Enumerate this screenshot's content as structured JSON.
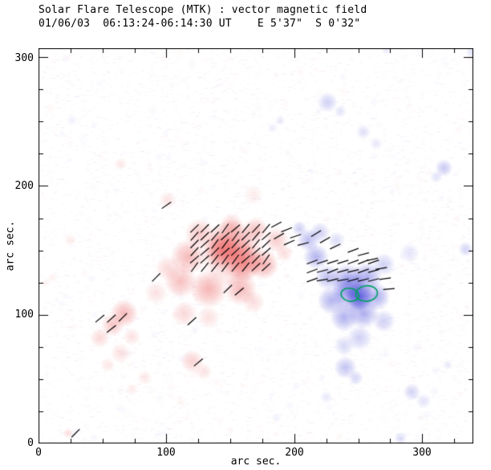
{
  "title": "Solar Flare Telescope (MTK) : vector magnetic field",
  "subtitle": "01/06/03  06:13:24-06:14:30 UT    E 5'37\"  S 0'32\"",
  "chart_data": {
    "type": "heatmap",
    "title": "Solar Flare Telescope (MTK) : vector magnetic field",
    "subtitle": "01/06/03  06:13:24-06:14:30 UT    E 5'37\"  S 0'32\"",
    "xlabel": "arc sec.",
    "ylabel": "arc sec.",
    "xlim": [
      0,
      340
    ],
    "ylim": [
      0,
      307
    ],
    "xticks": [
      0,
      100,
      200,
      300
    ],
    "yticks": [
      0,
      100,
      200,
      300
    ],
    "grid": false,
    "legend": false,
    "colors": {
      "positive": "#e83c3c",
      "negative": "#3a3ad6",
      "contour": "#00a060",
      "vector": "#000000",
      "positive_rgb": [
        232,
        60,
        60
      ],
      "negative_rgb": [
        58,
        58,
        214
      ]
    },
    "polarity_note": "positive=red, negative=blue, arcsec coordinates [x,y,radius,intensity,polarity]",
    "blobs": [
      [
        152,
        148,
        26,
        0.38,
        1
      ],
      [
        160,
        141,
        15,
        0.5,
        1
      ],
      [
        143,
        150,
        14,
        0.46,
        1
      ],
      [
        150,
        156,
        18,
        0.32,
        1
      ],
      [
        126,
        163,
        12,
        0.28,
        1
      ],
      [
        117,
        145,
        14,
        0.36,
        1
      ],
      [
        111,
        126,
        13,
        0.33,
        1
      ],
      [
        133,
        120,
        15,
        0.38,
        1
      ],
      [
        158,
        120,
        13,
        0.36,
        1
      ],
      [
        176,
        139,
        12,
        0.4,
        1
      ],
      [
        186,
        158,
        10,
        0.26,
        1
      ],
      [
        170,
        166,
        10,
        0.3,
        1
      ],
      [
        151,
        170,
        9,
        0.24,
        1
      ],
      [
        101,
        136,
        10,
        0.2,
        1
      ],
      [
        92,
        117,
        9,
        0.16,
        1
      ],
      [
        114,
        101,
        10,
        0.2,
        1
      ],
      [
        133,
        98,
        9,
        0.16,
        1
      ],
      [
        168,
        110,
        9,
        0.18,
        1
      ],
      [
        192,
        148,
        7,
        0.18,
        1
      ],
      [
        67,
        101,
        11,
        0.36,
        1
      ],
      [
        58,
        92,
        9,
        0.3,
        1
      ],
      [
        48,
        82,
        8,
        0.2,
        1
      ],
      [
        73,
        83,
        7,
        0.16,
        1
      ],
      [
        64,
        70,
        8,
        0.16,
        1
      ],
      [
        54,
        61,
        6,
        0.12,
        1
      ],
      [
        120,
        64,
        9,
        0.24,
        1
      ],
      [
        129,
        56,
        7,
        0.15,
        1
      ],
      [
        83,
        51,
        6,
        0.12,
        1
      ],
      [
        23,
        8,
        4,
        0.18,
        1
      ],
      [
        101,
        189,
        7,
        0.15,
        1
      ],
      [
        64,
        217,
        5,
        0.12,
        1
      ],
      [
        168,
        193,
        8,
        0.1,
        1
      ],
      [
        25,
        158,
        5,
        0.1,
        1
      ],
      [
        11,
        129,
        4,
        0.08,
        1
      ],
      [
        73,
        42,
        5,
        0.1,
        1
      ],
      [
        245,
        117,
        16,
        0.5,
        -1
      ],
      [
        251,
        114,
        11,
        0.72,
        -1
      ],
      [
        242,
        126,
        14,
        0.42,
        -1
      ],
      [
        257,
        129,
        12,
        0.4,
        -1
      ],
      [
        264,
        114,
        11,
        0.42,
        -1
      ],
      [
        254,
        101,
        12,
        0.42,
        -1
      ],
      [
        239,
        98,
        11,
        0.4,
        -1
      ],
      [
        229,
        111,
        11,
        0.38,
        -1
      ],
      [
        226,
        129,
        10,
        0.33,
        -1
      ],
      [
        217,
        145,
        10,
        0.38,
        -1
      ],
      [
        211,
        158,
        9,
        0.33,
        -1
      ],
      [
        220,
        164,
        8,
        0.24,
        -1
      ],
      [
        204,
        167,
        6,
        0.24,
        -1
      ],
      [
        270,
        139,
        9,
        0.24,
        -1
      ],
      [
        270,
        95,
        9,
        0.24,
        -1
      ],
      [
        251,
        82,
        10,
        0.24,
        -1
      ],
      [
        239,
        76,
        8,
        0.2,
        -1
      ],
      [
        233,
        158,
        7,
        0.18,
        -1
      ],
      [
        240,
        59,
        9,
        0.3,
        -1
      ],
      [
        248,
        51,
        6,
        0.2,
        -1
      ],
      [
        225,
        36,
        5,
        0.12,
        -1
      ],
      [
        292,
        40,
        7,
        0.22,
        -1
      ],
      [
        301,
        33,
        6,
        0.15,
        -1
      ],
      [
        283,
        4,
        5,
        0.18,
        -1
      ],
      [
        320,
        61,
        4,
        0.12,
        -1
      ],
      [
        317,
        214,
        7,
        0.28,
        -1
      ],
      [
        311,
        207,
        5,
        0.15,
        -1
      ],
      [
        334,
        151,
        6,
        0.22,
        -1
      ],
      [
        290,
        148,
        8,
        0.14,
        -1
      ],
      [
        226,
        265,
        8,
        0.24,
        -1
      ],
      [
        236,
        258,
        5,
        0.15,
        -1
      ],
      [
        254,
        242,
        6,
        0.16,
        -1
      ],
      [
        264,
        233,
        5,
        0.12,
        -1
      ],
      [
        189,
        251,
        4,
        0.12,
        -1
      ],
      [
        183,
        245,
        4,
        0.1,
        -1
      ],
      [
        339,
        304,
        5,
        0.15,
        -1
      ],
      [
        272,
        306,
        4,
        0.12,
        -1
      ],
      [
        26,
        251,
        4,
        0.08,
        -1
      ],
      [
        186,
        20,
        4,
        0.08,
        -1
      ]
    ],
    "vector_length": 9,
    "vector_grids": [
      {
        "x0": 122,
        "y0": 137,
        "cols": 8,
        "rows": 6,
        "dx": 8,
        "dy": 6,
        "angle": 48
      },
      {
        "x0": 214,
        "y0": 127,
        "cols": 7,
        "rows": 3,
        "dx": 8,
        "dy": 7,
        "angle": 15
      }
    ],
    "vectors": [
      [
        29,
        8,
        45
      ],
      [
        48,
        97,
        40
      ],
      [
        57,
        97,
        42
      ],
      [
        66,
        98,
        45
      ],
      [
        57,
        89,
        38
      ],
      [
        92,
        129,
        45
      ],
      [
        120,
        95,
        42
      ],
      [
        125,
        63,
        40
      ],
      [
        100,
        185,
        35
      ],
      [
        157,
        118,
        40
      ],
      [
        148,
        120,
        44
      ],
      [
        186,
        170,
        28
      ],
      [
        194,
        166,
        22
      ],
      [
        201,
        161,
        18
      ],
      [
        207,
        155,
        15
      ],
      [
        188,
        161,
        30
      ],
      [
        196,
        156,
        24
      ],
      [
        217,
        163,
        32
      ],
      [
        224,
        158,
        30
      ],
      [
        232,
        153,
        25
      ],
      [
        246,
        150,
        20
      ],
      [
        254,
        147,
        15
      ],
      [
        261,
        143,
        12
      ],
      [
        268,
        136,
        10
      ],
      [
        271,
        128,
        8
      ],
      [
        274,
        120,
        5
      ]
    ],
    "contours": [
      {
        "x": 243.5,
        "y": 115.5,
        "rx": 7,
        "ry": 5,
        "rot": -12
      },
      {
        "x": 256.5,
        "y": 116.5,
        "rx": 8.5,
        "ry": 6,
        "rot": 6
      }
    ]
  }
}
